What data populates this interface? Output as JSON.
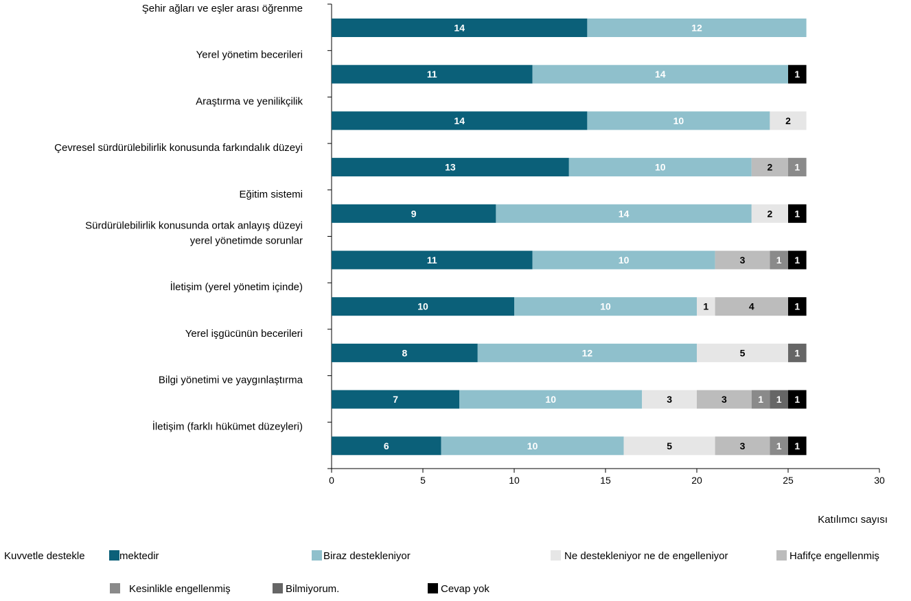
{
  "chart_data": {
    "type": "bar",
    "orientation": "horizontal",
    "stacked": true,
    "xlabel": "Katılımcı sayısı",
    "xlim": [
      0,
      30
    ],
    "xticks": [
      0,
      5,
      10,
      15,
      20,
      25,
      30
    ],
    "legend_position": "bottom",
    "categories": [
      [
        "Şehir ağları ve eşler arası öğrenme"
      ],
      [
        "Yerel yönetim becerileri"
      ],
      [
        "Araştırma ve yenilikçilik"
      ],
      [
        "Çevresel sürdürülebilirlik konusunda farkındalık düzeyi"
      ],
      [
        "Eğitim sistemi"
      ],
      [
        "Sürdürülebilirlik konusunda ortak anlayış düzeyi",
        "yerel yönetimde sorunlar"
      ],
      [
        "İletişim (yerel yönetim içinde)"
      ],
      [
        "Yerel işgücünün becerileri"
      ],
      [
        "Bilgi yönetimi ve yaygınlaştırma"
      ],
      [
        "İletişim (farklı hükümet düzeyleri)"
      ]
    ],
    "series": [
      {
        "name": "Kuvvetle destekle",
        "name_suffix": "mektedir",
        "color": "#0b6079",
        "text_color": "#ffffff",
        "values": [
          14,
          11,
          14,
          13,
          9,
          11,
          10,
          8,
          7,
          6
        ]
      },
      {
        "name": "Biraz destekleniyor",
        "color": "#8fc0cc",
        "text_color": "#ffffff",
        "values": [
          12,
          14,
          10,
          10,
          14,
          10,
          10,
          12,
          10,
          10
        ]
      },
      {
        "name": "Ne destekleniyor ne de engelleniyor",
        "color": "#e6e6e6",
        "text_color": "#000000",
        "values": [
          0,
          0,
          2,
          0,
          2,
          0,
          1,
          5,
          3,
          5
        ]
      },
      {
        "name": "Hafifçe engellenmiş",
        "color": "#bcbcbc",
        "text_color": "#000000",
        "values": [
          0,
          0,
          0,
          2,
          0,
          3,
          4,
          0,
          3,
          3
        ]
      },
      {
        "name": "Kesinlikle engellenmiş",
        "color": "#8a8a8a",
        "text_color": "#ffffff",
        "values": [
          0,
          0,
          0,
          1,
          0,
          1,
          0,
          0,
          1,
          1
        ]
      },
      {
        "name": "Bilmiyorum.",
        "color": "#666666",
        "text_color": "#ffffff",
        "values": [
          0,
          0,
          0,
          0,
          0,
          0,
          0,
          1,
          1,
          0
        ]
      },
      {
        "name": "Cevap yok",
        "color": "#000000",
        "text_color": "#ffffff",
        "values": [
          0,
          1,
          0,
          0,
          1,
          1,
          1,
          0,
          1,
          1
        ]
      }
    ]
  }
}
